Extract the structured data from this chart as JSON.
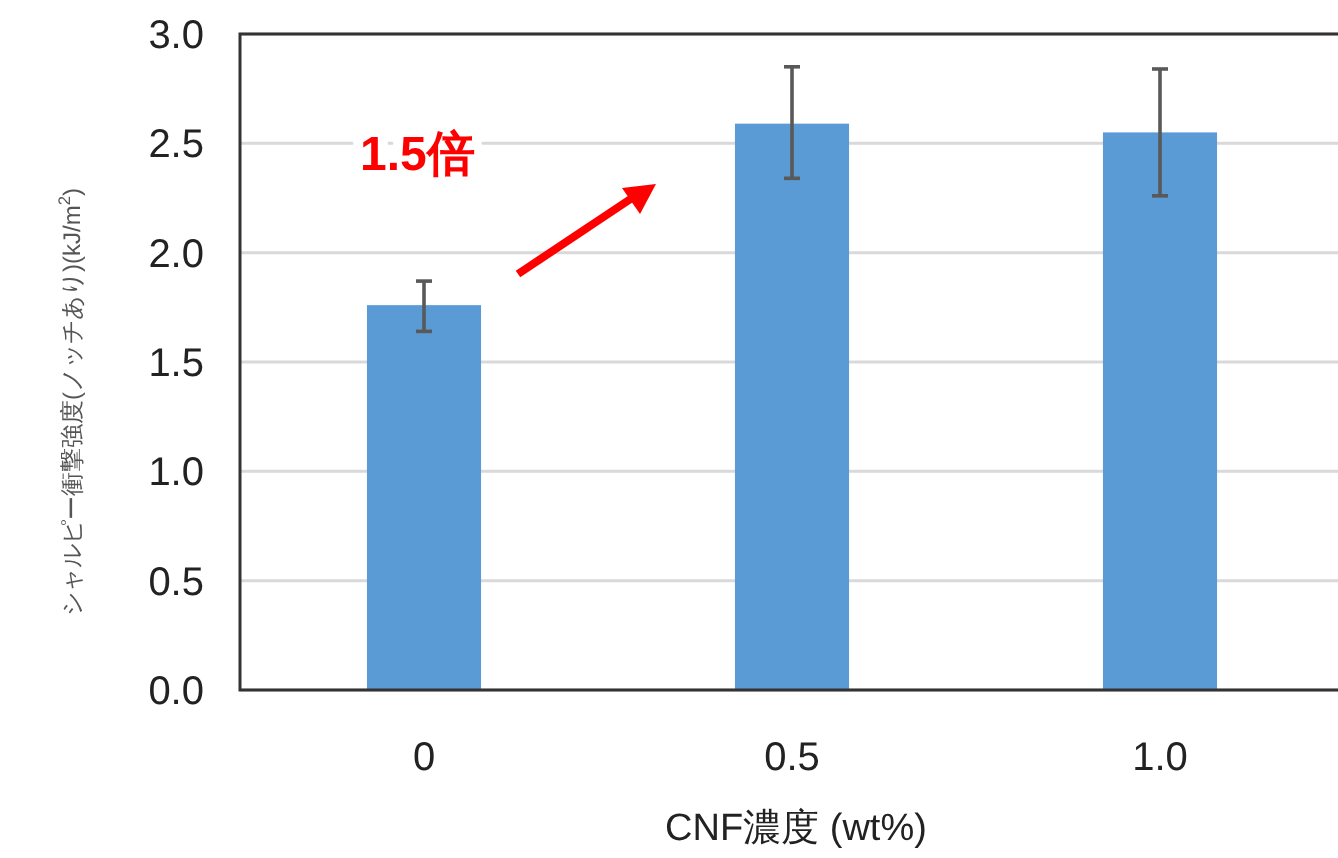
{
  "chart_data": {
    "type": "bar",
    "categories": [
      "0",
      "0.5",
      "1.0"
    ],
    "values": [
      1.76,
      2.59,
      2.55
    ],
    "errors": [
      [
        1.64,
        1.87
      ],
      [
        2.34,
        2.85
      ],
      [
        2.26,
        2.84
      ]
    ],
    "color": "#5b9bd5",
    "ylim": [
      0,
      3.0
    ],
    "yticks": [
      {
        "value": 0,
        "label": "0.0"
      },
      0.5,
      {
        "value": 1,
        "label": "1.0"
      },
      1.5,
      {
        "value": 2,
        "label": "2.0"
      },
      2.5,
      {
        "value": 3,
        "label": "3.0"
      }
    ],
    "grid": "y",
    "xlabel": "CNF濃度 (wt%)",
    "ylabel": "シャルピー衝撃強度(ノッチあり)(kJ/m$^{2}$)",
    "annotations": [
      "1.5倍"
    ]
  }
}
